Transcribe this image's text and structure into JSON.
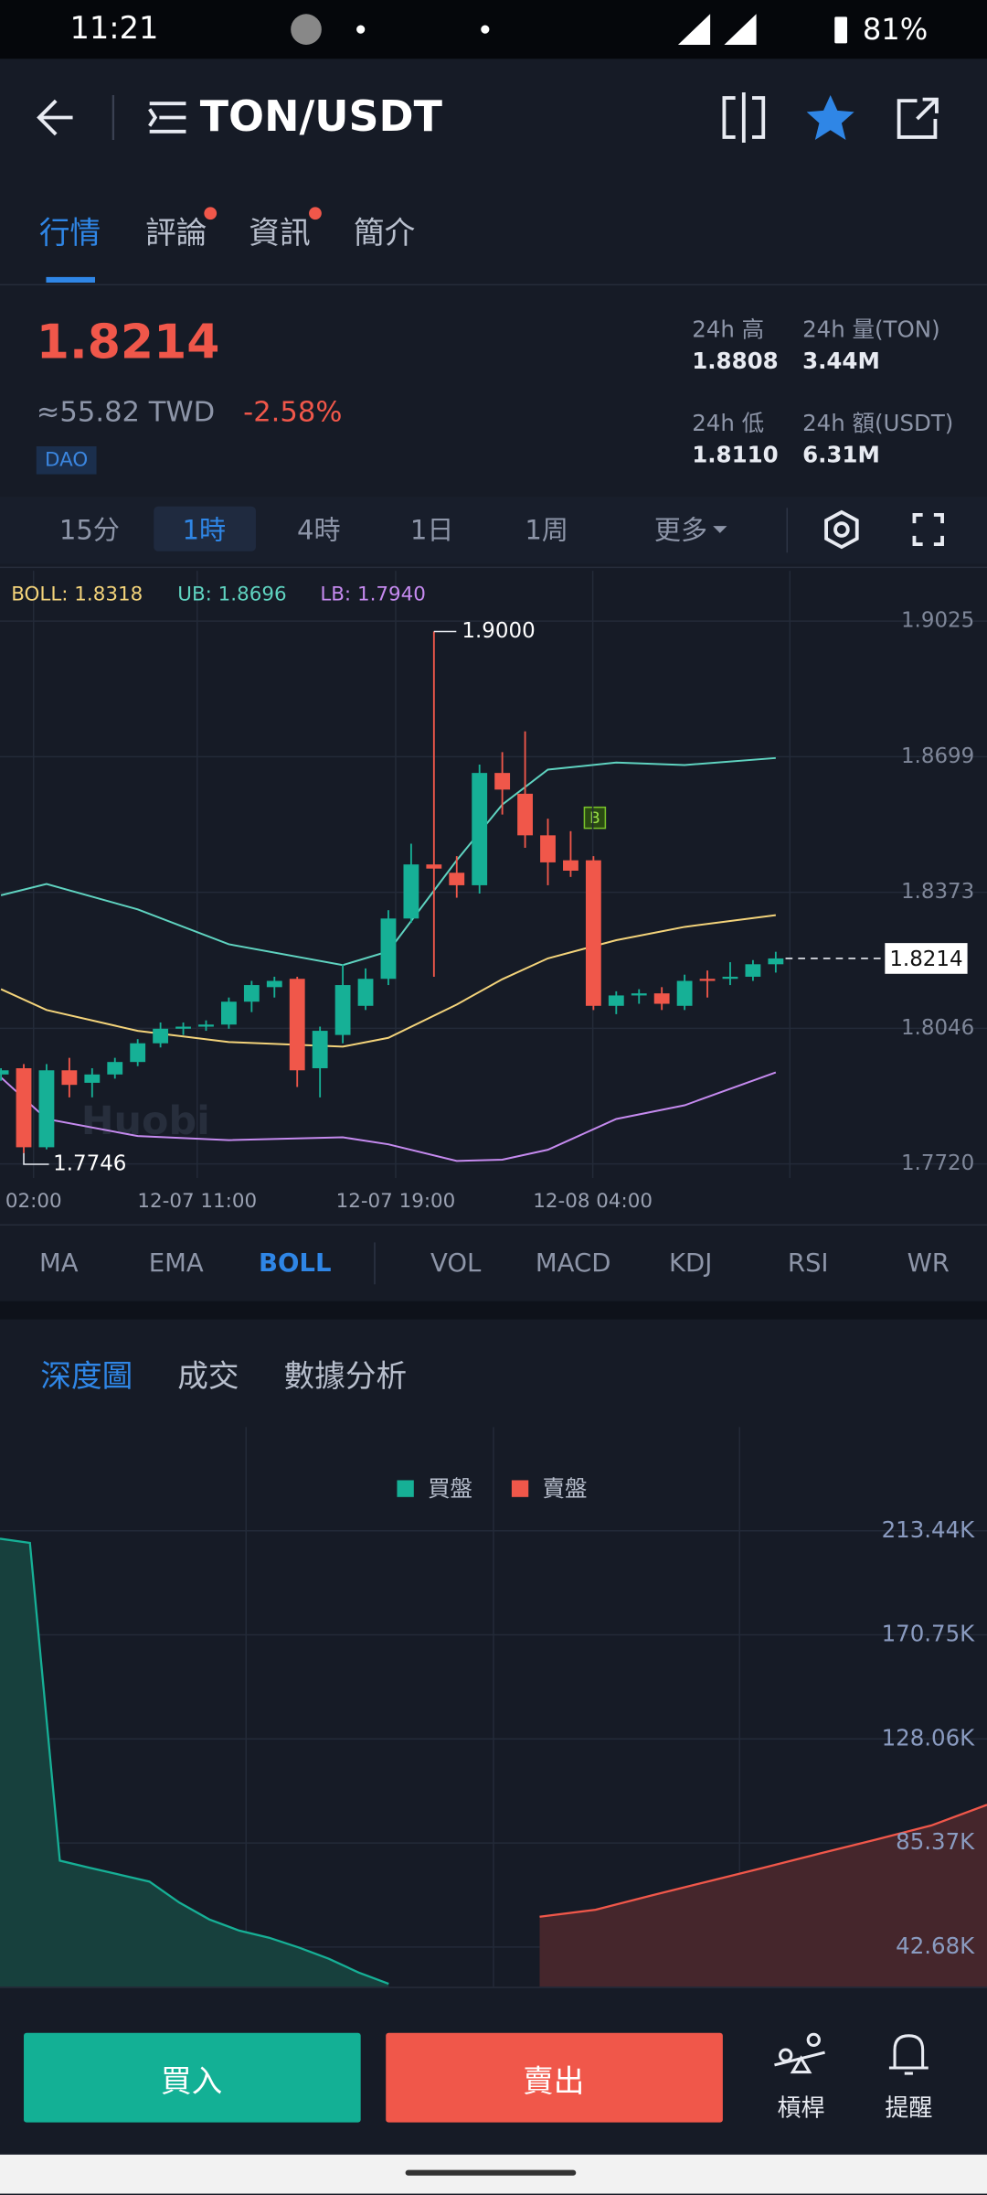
{
  "status_bar": {
    "time": "11:21",
    "battery": "81%"
  },
  "header": {
    "pair": "TON/USDT"
  },
  "tabs": [
    "行情",
    "評論",
    "資訊",
    "簡介"
  ],
  "price": {
    "last": "1.8214",
    "fiat": "≈55.82 TWD",
    "change": "-2.58%",
    "tag": "DAO"
  },
  "stats": [
    {
      "label": "24h 高",
      "value": "1.8808"
    },
    {
      "label": "24h 量(TON)",
      "value": "3.44M"
    },
    {
      "label": "24h 低",
      "value": "1.8110"
    },
    {
      "label": "24h 額(USDT)",
      "value": "6.31M"
    }
  ],
  "intervals": [
    "15分",
    "1時",
    "4時",
    "1日",
    "1周",
    "更多"
  ],
  "chart_data": [
    {
      "type": "candlestick",
      "watermark": "Huobi",
      "up_color": "#16b096",
      "down_color": "#f0574a",
      "xlim": [
        -0.043,
        34.62
      ],
      "xticks": [
        {
          "value": 1.43,
          "label": "02:00"
        },
        {
          "value": 8.61,
          "label": "12-07 11:00"
        },
        {
          "value": 17.32,
          "label": "12-07 19:00"
        },
        {
          "value": 25.97,
          "label": "12-08 04:00"
        }
      ],
      "ylim": [
        1.7686,
        1.9146
      ],
      "yticks": [
        {
          "value": 1.772,
          "label": "1.7720"
        },
        1.8046,
        1.8373,
        1.8699,
        1.9025
      ],
      "grid": true,
      "open": [
        1.7935,
        1.795,
        1.776,
        1.7945,
        1.7915,
        1.7935,
        1.7965,
        1.801,
        1.8045,
        1.805,
        1.8055,
        1.811,
        1.8145,
        1.8165,
        1.795,
        1.803,
        1.81,
        1.8165,
        1.831,
        1.844,
        1.842,
        1.839,
        1.866,
        1.861,
        1.851,
        1.845,
        1.845,
        1.81,
        1.8125,
        1.813,
        1.81,
        1.8165,
        1.8165,
        1.817,
        1.82
      ],
      "high": [
        1.795,
        1.796,
        1.796,
        1.7975,
        1.795,
        1.7975,
        1.802,
        1.806,
        1.806,
        1.8065,
        1.812,
        1.816,
        1.817,
        1.817,
        1.805,
        1.82,
        1.819,
        1.833,
        1.849,
        1.9,
        1.846,
        1.868,
        1.871,
        1.876,
        1.855,
        1.852,
        1.846,
        1.8135,
        1.814,
        1.8145,
        1.8175,
        1.8185,
        1.8205,
        1.821,
        1.823
      ],
      "low": [
        1.792,
        1.7746,
        1.7755,
        1.788,
        1.788,
        1.7925,
        1.7955,
        1.8,
        1.803,
        1.804,
        1.8045,
        1.8085,
        1.812,
        1.7905,
        1.788,
        1.801,
        1.809,
        1.815,
        1.83,
        1.817,
        1.836,
        1.837,
        1.856,
        1.848,
        1.839,
        1.841,
        1.809,
        1.808,
        1.8105,
        1.809,
        1.809,
        1.812,
        1.815,
        1.816,
        1.818
      ],
      "close": [
        1.7945,
        1.776,
        1.7945,
        1.791,
        1.7935,
        1.7965,
        1.801,
        1.8045,
        1.805,
        1.8055,
        1.811,
        1.815,
        1.816,
        1.7945,
        1.804,
        1.815,
        1.8165,
        1.831,
        1.844,
        1.843,
        1.839,
        1.866,
        1.862,
        1.851,
        1.8445,
        1.8425,
        1.81,
        1.8125,
        1.813,
        1.8105,
        1.816,
        1.816,
        1.817,
        1.82,
        1.8214
      ],
      "high_marker": {
        "value": 1.9,
        "label": "1.9000"
      },
      "low_marker": 1.7746,
      "last": 1.8214,
      "trade_marker": "B",
      "series": [
        {
          "name": "BOLL",
          "label": "BOLL: 1.8318",
          "color": "#f3d37a",
          "x": [
            0,
            2,
            6,
            10,
            15,
            17,
            20,
            22,
            24,
            27,
            30,
            34
          ],
          "values": [
            1.814,
            1.809,
            1.804,
            1.8013,
            1.8002,
            1.8023,
            1.8103,
            1.8164,
            1.8214,
            1.8258,
            1.829,
            1.8318
          ]
        },
        {
          "name": "UB",
          "label": "UB: 1.8696",
          "color": "#5fd3c0",
          "x": [
            0,
            2,
            6,
            10,
            15,
            17,
            20,
            22,
            24,
            27,
            30,
            34
          ],
          "values": [
            1.8366,
            1.8393,
            1.8332,
            1.8248,
            1.8198,
            1.8231,
            1.845,
            1.8584,
            1.8668,
            1.8685,
            1.8679,
            1.8696
          ]
        },
        {
          "name": "LB",
          "label": "LB: 1.7940",
          "color": "#c58aef",
          "x": [
            0,
            2,
            6,
            10,
            15,
            17,
            20,
            22,
            24,
            27,
            30,
            34
          ],
          "values": [
            1.7928,
            1.7828,
            1.7787,
            1.7777,
            1.7784,
            1.7767,
            1.7727,
            1.773,
            1.7754,
            1.7828,
            1.7861,
            1.794
          ]
        }
      ]
    },
    {
      "type": "depth",
      "ylim": [
        0,
        256
      ],
      "yticks": [
        {
          "value": 42.68,
          "label": "42.68K"
        },
        {
          "value": 85.37,
          "label": "85.37K"
        },
        {
          "value": 128.06,
          "label": "128.06K"
        },
        {
          "value": 170.75,
          "label": "170.75K"
        },
        {
          "value": 213.44,
          "label": "213.44K"
        }
      ],
      "grid": true,
      "series": [
        {
          "name": "買盤",
          "color": "#16b096",
          "values": [
            210.2,
            208.5,
            78.1,
            75.2,
            72.4,
            69.5,
            60.9,
            54.0,
            49.4,
            46.5,
            42.5,
            37.9,
            32.2,
            27.6
          ]
        },
        {
          "name": "賣盤",
          "color": "#f0574a",
          "values": [
            55.1,
            58.0,
            63.8,
            69.5,
            75.2,
            81.0,
            86.7,
            92.5,
            101.0
          ]
        }
      ]
    }
  ],
  "indicators": [
    "MA",
    "EMA",
    "BOLL",
    "VOL",
    "MACD",
    "KDJ",
    "RSI",
    "WR"
  ],
  "depth_tabs": [
    "深度圖",
    "成交",
    "數據分析"
  ],
  "actions": {
    "buy": "買入",
    "sell": "賣出",
    "leverage": "槓桿",
    "alert": "提醒"
  }
}
